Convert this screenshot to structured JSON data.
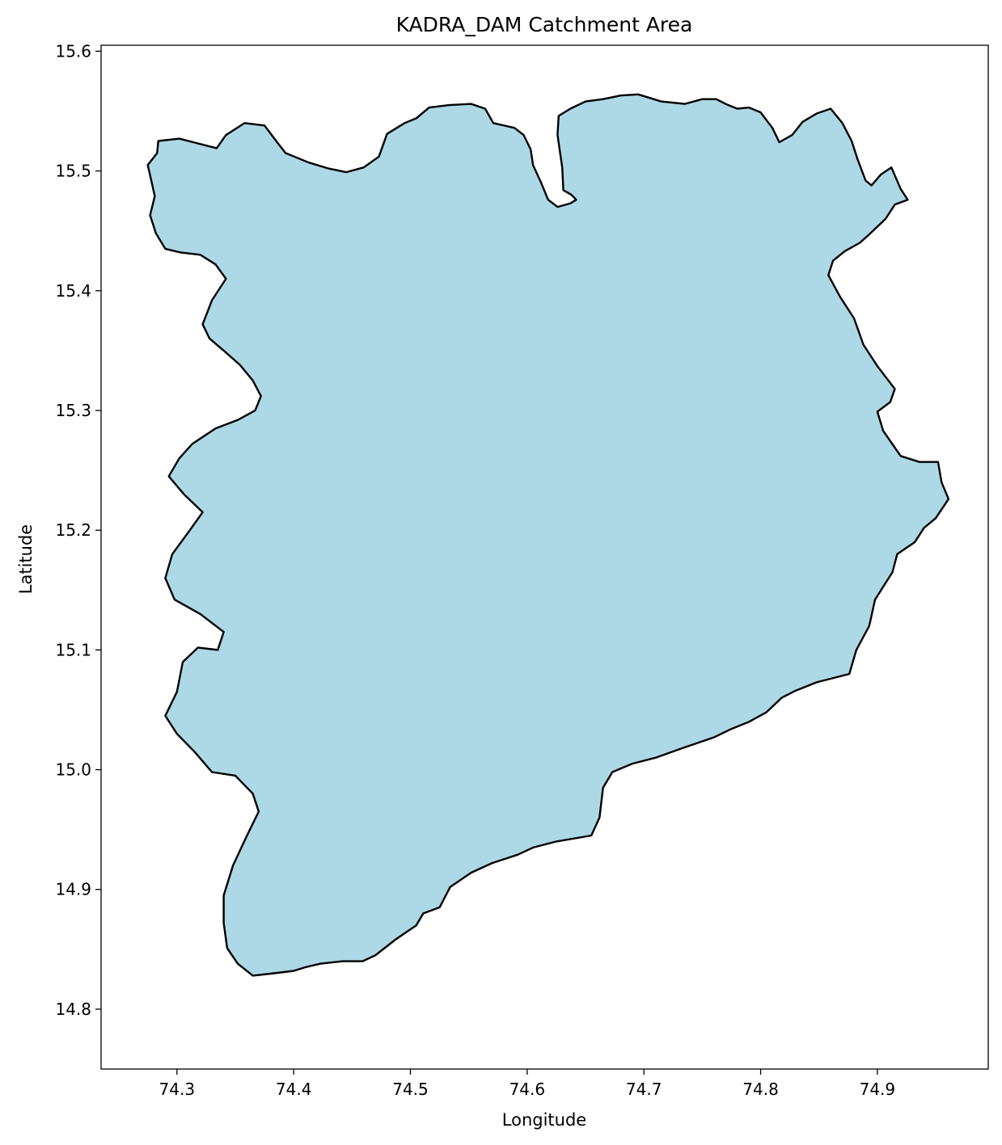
{
  "chart_data": {
    "type": "map",
    "title": "KADRA_DAM Catchment Area",
    "xlabel": "Longitude",
    "ylabel": "Latitude",
    "xlim": [
      74.235,
      74.995
    ],
    "ylim": [
      14.75,
      15.605
    ],
    "xticks": [
      74.3,
      74.4,
      74.5,
      74.6,
      74.7,
      74.8,
      74.9
    ],
    "xtick_labels": [
      "74.3",
      "74.4",
      "74.5",
      "74.6",
      "74.7",
      "74.8",
      "74.9"
    ],
    "yticks": [
      14.8,
      14.9,
      15.0,
      15.1,
      15.2,
      15.3,
      15.4,
      15.5,
      15.6
    ],
    "ytick_labels": [
      "14.8",
      "14.9",
      "15.0",
      "15.1",
      "15.2",
      "15.3",
      "15.4",
      "15.5",
      "15.6"
    ],
    "grid": false,
    "fill_color": "#add8e6",
    "edge_color": "#000000",
    "polygon": [
      [
        74.284,
        15.525
      ],
      [
        74.302,
        15.527
      ],
      [
        74.318,
        15.523
      ],
      [
        74.334,
        15.519
      ],
      [
        74.342,
        15.53
      ],
      [
        74.358,
        15.54
      ],
      [
        74.375,
        15.538
      ],
      [
        74.385,
        15.525
      ],
      [
        74.393,
        15.515
      ],
      [
        74.413,
        15.507
      ],
      [
        74.43,
        15.502
      ],
      [
        74.445,
        15.499
      ],
      [
        74.46,
        15.503
      ],
      [
        74.473,
        15.512
      ],
      [
        74.48,
        15.531
      ],
      [
        74.495,
        15.54
      ],
      [
        74.505,
        15.544
      ],
      [
        74.516,
        15.553
      ],
      [
        74.533,
        15.555
      ],
      [
        74.552,
        15.556
      ],
      [
        74.564,
        15.552
      ],
      [
        74.571,
        15.54
      ],
      [
        74.589,
        15.536
      ],
      [
        74.597,
        15.53
      ],
      [
        74.603,
        15.518
      ],
      [
        74.605,
        15.505
      ],
      [
        74.612,
        15.49
      ],
      [
        74.618,
        15.476
      ],
      [
        74.626,
        15.47
      ],
      [
        74.637,
        15.473
      ],
      [
        74.642,
        15.476
      ],
      [
        74.638,
        15.48
      ],
      [
        74.631,
        15.484
      ],
      [
        74.63,
        15.503
      ],
      [
        74.626,
        15.53
      ],
      [
        74.627,
        15.546
      ],
      [
        74.637,
        15.552
      ],
      [
        74.65,
        15.558
      ],
      [
        74.665,
        15.56
      ],
      [
        74.68,
        15.563
      ],
      [
        74.695,
        15.564
      ],
      [
        74.705,
        15.561
      ],
      [
        74.715,
        15.558
      ],
      [
        74.735,
        15.556
      ],
      [
        74.75,
        15.56
      ],
      [
        74.762,
        15.56
      ],
      [
        74.77,
        15.556
      ],
      [
        74.78,
        15.552
      ],
      [
        74.79,
        15.553
      ],
      [
        74.8,
        15.549
      ],
      [
        74.81,
        15.536
      ],
      [
        74.816,
        15.524
      ],
      [
        74.827,
        15.53
      ],
      [
        74.836,
        15.541
      ],
      [
        74.848,
        15.548
      ],
      [
        74.86,
        15.552
      ],
      [
        74.87,
        15.54
      ],
      [
        74.878,
        15.525
      ],
      [
        74.883,
        15.51
      ],
      [
        74.89,
        15.492
      ],
      [
        74.895,
        15.488
      ],
      [
        74.903,
        15.497
      ],
      [
        74.912,
        15.503
      ],
      [
        74.92,
        15.485
      ],
      [
        74.926,
        15.476
      ],
      [
        74.915,
        15.472
      ],
      [
        74.907,
        15.46
      ],
      [
        74.893,
        15.447
      ],
      [
        74.885,
        15.44
      ],
      [
        74.872,
        15.433
      ],
      [
        74.862,
        15.425
      ],
      [
        74.858,
        15.413
      ],
      [
        74.868,
        15.395
      ],
      [
        74.88,
        15.377
      ],
      [
        74.888,
        15.355
      ],
      [
        74.9,
        15.337
      ],
      [
        74.915,
        15.318
      ],
      [
        74.911,
        15.307
      ],
      [
        74.9,
        15.299
      ],
      [
        74.905,
        15.283
      ],
      [
        74.92,
        15.262
      ],
      [
        74.936,
        15.257
      ],
      [
        74.952,
        15.257
      ],
      [
        74.955,
        15.24
      ],
      [
        74.961,
        15.226
      ],
      [
        74.95,
        15.21
      ],
      [
        74.94,
        15.202
      ],
      [
        74.932,
        15.19
      ],
      [
        74.917,
        15.18
      ],
      [
        74.913,
        15.165
      ],
      [
        74.898,
        15.142
      ],
      [
        74.893,
        15.12
      ],
      [
        74.882,
        15.1
      ],
      [
        74.876,
        15.08
      ],
      [
        74.848,
        15.073
      ],
      [
        74.83,
        15.066
      ],
      [
        74.818,
        15.06
      ],
      [
        74.805,
        15.048
      ],
      [
        74.79,
        15.04
      ],
      [
        74.775,
        15.034
      ],
      [
        74.76,
        15.027
      ],
      [
        74.733,
        15.018
      ],
      [
        74.71,
        15.01
      ],
      [
        74.69,
        15.005
      ],
      [
        74.673,
        14.998
      ],
      [
        74.665,
        14.985
      ],
      [
        74.662,
        14.96
      ],
      [
        74.655,
        14.945
      ],
      [
        74.625,
        14.94
      ],
      [
        74.605,
        14.935
      ],
      [
        74.592,
        14.929
      ],
      [
        74.57,
        14.922
      ],
      [
        74.552,
        14.914
      ],
      [
        74.534,
        14.902
      ],
      [
        74.525,
        14.885
      ],
      [
        74.511,
        14.88
      ],
      [
        74.505,
        14.87
      ],
      [
        74.487,
        14.858
      ],
      [
        74.47,
        14.845
      ],
      [
        74.459,
        14.84
      ],
      [
        74.442,
        14.84
      ],
      [
        74.423,
        14.838
      ],
      [
        74.41,
        14.835
      ],
      [
        74.4,
        14.832
      ],
      [
        74.383,
        14.83
      ],
      [
        74.365,
        14.828
      ],
      [
        74.352,
        14.838
      ],
      [
        74.343,
        14.851
      ],
      [
        74.34,
        14.872
      ],
      [
        74.34,
        14.895
      ],
      [
        74.348,
        14.92
      ],
      [
        74.36,
        14.945
      ],
      [
        74.37,
        14.965
      ],
      [
        74.365,
        14.98
      ],
      [
        74.35,
        14.995
      ],
      [
        74.33,
        14.998
      ],
      [
        74.315,
        15.015
      ],
      [
        74.3,
        15.03
      ],
      [
        74.29,
        15.045
      ],
      [
        74.3,
        15.065
      ],
      [
        74.305,
        15.09
      ],
      [
        74.318,
        15.102
      ],
      [
        74.335,
        15.1
      ],
      [
        74.34,
        15.115
      ],
      [
        74.32,
        15.13
      ],
      [
        74.298,
        15.142
      ],
      [
        74.29,
        15.16
      ],
      [
        74.296,
        15.18
      ],
      [
        74.311,
        15.2
      ],
      [
        74.322,
        15.215
      ],
      [
        74.306,
        15.23
      ],
      [
        74.293,
        15.245
      ],
      [
        74.302,
        15.26
      ],
      [
        74.313,
        15.272
      ],
      [
        74.333,
        15.285
      ],
      [
        74.352,
        15.292
      ],
      [
        74.367,
        15.3
      ],
      [
        74.372,
        15.312
      ],
      [
        74.365,
        15.325
      ],
      [
        74.354,
        15.338
      ],
      [
        74.34,
        15.35
      ],
      [
        74.328,
        15.36
      ],
      [
        74.322,
        15.372
      ],
      [
        74.33,
        15.392
      ],
      [
        74.342,
        15.41
      ],
      [
        74.333,
        15.422
      ],
      [
        74.32,
        15.43
      ],
      [
        74.303,
        15.432
      ],
      [
        74.29,
        15.435
      ],
      [
        74.282,
        15.448
      ],
      [
        74.277,
        15.463
      ],
      [
        74.281,
        15.479
      ],
      [
        74.278,
        15.492
      ],
      [
        74.275,
        15.505
      ],
      [
        74.283,
        15.515
      ]
    ]
  }
}
